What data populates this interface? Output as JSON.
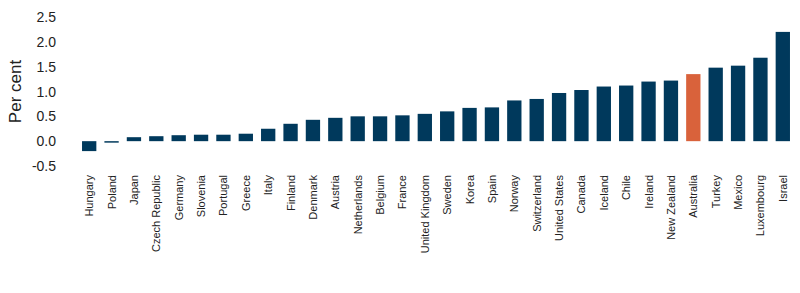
{
  "chart_data": {
    "type": "bar",
    "y_label": "Per cent",
    "categories": [
      "Hungary",
      "Poland",
      "Japan",
      "Czech Republic",
      "Germany",
      "Slovenia",
      "Portugal",
      "Greece",
      "Italy",
      "Finland",
      "Denmark",
      "Austria",
      "Netherlands",
      "Belgium",
      "France",
      "United Kingdom",
      "Sweden",
      "Korea",
      "Spain",
      "Norway",
      "Switzerland",
      "United States",
      "Canada",
      "Iceland",
      "Chile",
      "Ireland",
      "New Zealand",
      "Australia",
      "Turkey",
      "Mexico",
      "Luxembourg",
      "Israel"
    ],
    "values": [
      -0.2,
      -0.03,
      0.08,
      0.1,
      0.12,
      0.13,
      0.13,
      0.15,
      0.25,
      0.35,
      0.43,
      0.47,
      0.5,
      0.5,
      0.52,
      0.55,
      0.6,
      0.67,
      0.68,
      0.82,
      0.85,
      0.97,
      1.03,
      1.1,
      1.12,
      1.2,
      1.22,
      1.35,
      1.48,
      1.52,
      1.68,
      2.2
    ],
    "colors": [
      "#00395c",
      "#00395c",
      "#00395c",
      "#00395c",
      "#00395c",
      "#00395c",
      "#00395c",
      "#00395c",
      "#00395c",
      "#00395c",
      "#00395c",
      "#00395c",
      "#00395c",
      "#00395c",
      "#00395c",
      "#00395c",
      "#00395c",
      "#00395c",
      "#00395c",
      "#00395c",
      "#00395c",
      "#00395c",
      "#00395c",
      "#00395c",
      "#00395c",
      "#00395c",
      "#00395c",
      "#d9623b",
      "#00395c",
      "#00395c",
      "#00395c",
      "#00395c"
    ],
    "ylim": [
      -0.5,
      2.5
    ],
    "yticks": [
      -0.5,
      {
        "value": 0,
        "label": "0.0"
      },
      0.5,
      {
        "value": 1,
        "label": "1.0"
      },
      1.5,
      {
        "value": 2,
        "label": "2.0"
      },
      2.5
    ],
    "grid": false
  }
}
